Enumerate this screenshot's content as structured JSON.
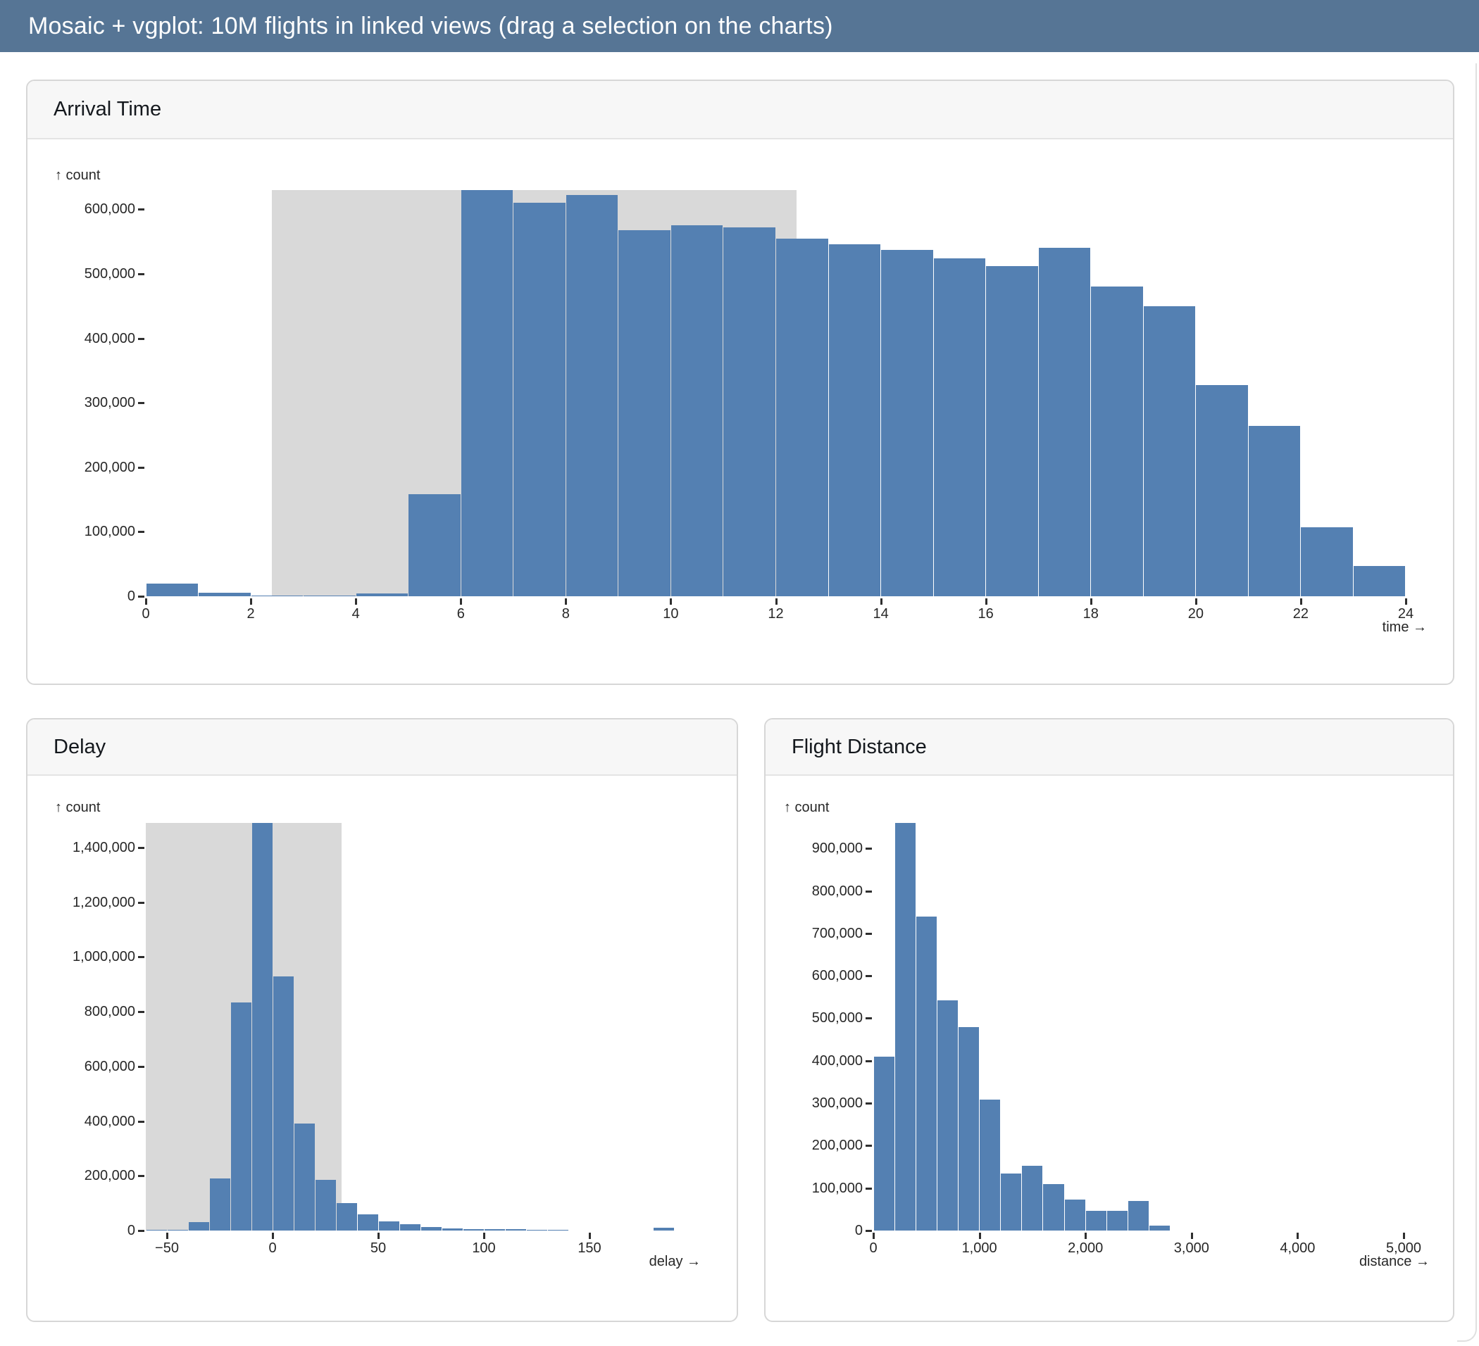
{
  "header": {
    "title": "Mosaic + vgplot: 10M flights in linked views (drag a selection on the charts)"
  },
  "theme": {
    "header_bg": "#567595",
    "bar_fill": "#5480b2",
    "selection_fill": "#d9d9d9"
  },
  "chart_data": [
    {
      "type": "bar",
      "title": "Arrival Time",
      "ylabel": "↑ count",
      "xlabel": "time →",
      "bin_start": 0,
      "bin_width": 1,
      "values": [
        20000,
        5000,
        1000,
        800,
        4000,
        158000,
        630000,
        610000,
        622000,
        568000,
        575000,
        572000,
        555000,
        546000,
        537000,
        524000,
        512000,
        540000,
        480000,
        450000,
        328000,
        264000,
        107000,
        47000
      ],
      "x_ticks": [
        0,
        2,
        4,
        6,
        8,
        10,
        12,
        14,
        16,
        18,
        20,
        22,
        24
      ],
      "x_tick_labels": [
        "0",
        "2",
        "4",
        "6",
        "8",
        "10",
        "12",
        "14",
        "16",
        "18",
        "20",
        "22",
        "24"
      ],
      "y_ticks": [
        0,
        100000,
        200000,
        300000,
        400000,
        500000,
        600000
      ],
      "y_tick_labels": [
        "0",
        "100,000",
        "200,000",
        "300,000",
        "400,000",
        "500,000",
        "600,000"
      ],
      "xlim": [
        0,
        24
      ],
      "ylim": [
        0,
        630000
      ],
      "selection": [
        2.4,
        12.4
      ],
      "grid": false,
      "legend": "none"
    },
    {
      "type": "bar",
      "title": "Delay",
      "ylabel": "↑ count",
      "xlabel": "delay →",
      "bin_start": -60,
      "bin_width": 10,
      "values": [
        1000,
        2000,
        30000,
        190000,
        835000,
        1490000,
        930000,
        390000,
        185000,
        100000,
        60000,
        33000,
        23000,
        13000,
        8000,
        6000,
        5000,
        4000,
        2500,
        1000,
        0,
        0,
        0,
        0,
        10000
      ],
      "x_ticks": [
        -50,
        0,
        50,
        100,
        150
      ],
      "x_tick_labels": [
        "−50",
        "0",
        "50",
        "100",
        "150"
      ],
      "y_ticks": [
        0,
        200000,
        400000,
        600000,
        800000,
        1000000,
        1200000,
        1400000
      ],
      "y_tick_labels": [
        "0",
        "200,000",
        "400,000",
        "600,000",
        "800,000",
        "1,000,000",
        "1,200,000",
        "1,400,000"
      ],
      "xlim": [
        -60,
        200
      ],
      "ylim": [
        0,
        1490000
      ],
      "selection": [
        -60,
        32.5
      ],
      "grid": false,
      "legend": "none"
    },
    {
      "type": "bar",
      "title": "Flight Distance",
      "ylabel": "↑ count",
      "xlabel": "distance →",
      "bin_start": 0,
      "bin_width": 200,
      "values": [
        410000,
        960000,
        740000,
        543000,
        479000,
        308000,
        135000,
        152000,
        110000,
        73000,
        46000,
        46000,
        70000,
        12000
      ],
      "x_ticks": [
        0,
        1000,
        2000,
        3000,
        4000,
        5000
      ],
      "x_tick_labels": [
        "0",
        "1,000",
        "2,000",
        "3,000",
        "4,000",
        "5,000"
      ],
      "y_ticks": [
        0,
        100000,
        200000,
        300000,
        400000,
        500000,
        600000,
        700000,
        800000,
        900000
      ],
      "y_tick_labels": [
        "0",
        "100,000",
        "200,000",
        "300,000",
        "400,000",
        "500,000",
        "600,000",
        "700,000",
        "800,000",
        "900,000"
      ],
      "xlim": [
        0,
        5000
      ],
      "ylim": [
        0,
        960000
      ],
      "selection": null,
      "grid": false,
      "legend": "none"
    }
  ]
}
